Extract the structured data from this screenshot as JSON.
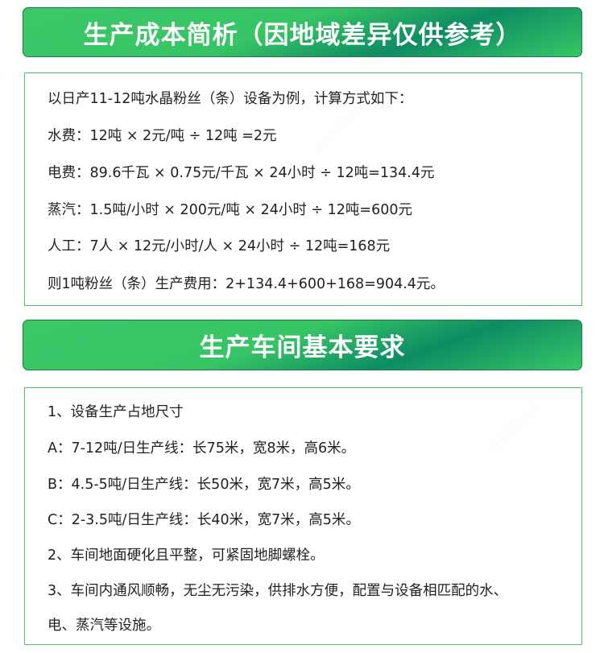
{
  "section1": {
    "title": "生产成本简析（因地域差异仅供参考）",
    "lines": [
      "以日产11-12吨水晶粉丝（条）设备为例，计算方式如下：",
      "水费：12吨 × 2元/吨 ÷ 12吨 =2元",
      "电费：89.6千瓦 × 0.75元/千瓦 × 24小时 ÷ 12吨=134.4元",
      "蒸汽：1.5吨/小时 × 200元/吨 × 24小时 ÷ 12吨=600元",
      "人工：7人 × 12元/小时/人 × 24小时 ÷ 12吨=168元",
      "则1吨粉丝（条）生产费用：2+134.4+600+168=904.4元。"
    ]
  },
  "section2": {
    "title": "生产车间基本要求",
    "lines": [
      "1、设备生产占地尺寸",
      "A：7-12吨/日生产线：长75米，宽8米，高6米。",
      "B：4.5-5吨/日生产线：长50米，宽7米，高5米。",
      "C：2-3.5吨/日生产线：长40米，宽7米，高5米。",
      "2、车间地面硬化且平整，可紧固地脚螺栓。",
      "3、车间内通风顺畅，无尘无污染，供排水方便，配置与设备相匹配的水、",
      "电、蒸汽等设施。"
    ]
  },
  "watermark": "开封丽星机械",
  "colors": {
    "accent": "#36c465",
    "accent_dark": "#0e8c63",
    "border": "#4cc36e"
  }
}
